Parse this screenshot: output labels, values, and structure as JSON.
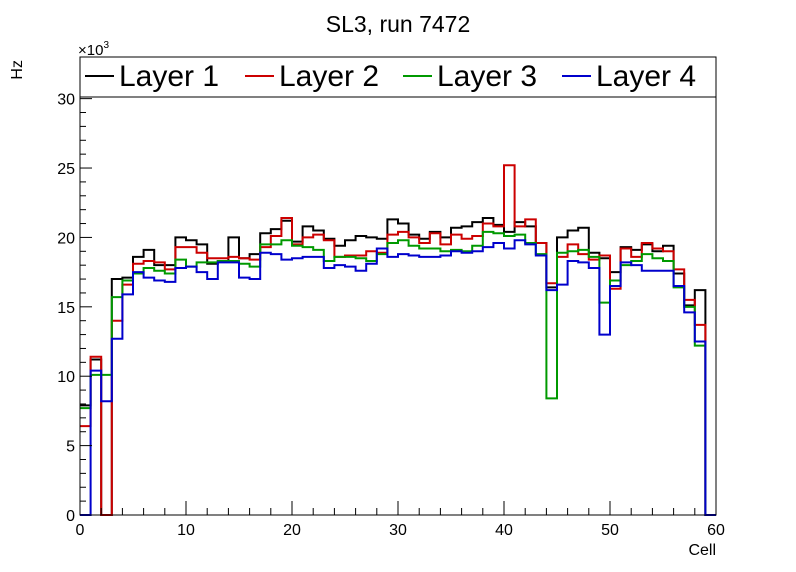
{
  "chart_data": {
    "type": "line",
    "style": "step-histogram",
    "title": "SL3, run 7472",
    "xlabel": "Cell",
    "ylabel": "Hz",
    "y_exponent_label": "×10",
    "y_exponent_power": "3",
    "xlim": [
      0,
      60
    ],
    "ylim": [
      0,
      33
    ],
    "x_ticks": [
      0,
      10,
      20,
      30,
      40,
      50,
      60
    ],
    "y_ticks": [
      0,
      5,
      10,
      15,
      20,
      25,
      30
    ],
    "grid": false,
    "legend": "top",
    "bin_edges_start": 0,
    "bin_width": 1,
    "series": [
      {
        "name": "Layer 1",
        "color": "#000000",
        "values": [
          7.9,
          11.2,
          0,
          17.0,
          17.1,
          18.6,
          19.1,
          18.0,
          18.0,
          20.0,
          19.8,
          19.5,
          18.1,
          18.3,
          20.0,
          18.5,
          18.8,
          20.3,
          20.6,
          21.2,
          19.7,
          20.8,
          20.5,
          19.9,
          19.4,
          19.8,
          20.1,
          20.0,
          19.9,
          21.3,
          21.0,
          20.2,
          19.9,
          20.4,
          20.0,
          20.7,
          20.8,
          21.1,
          21.4,
          20.9,
          20.4,
          21.1,
          20.8,
          19.6,
          16.4,
          20.0,
          20.5,
          20.7,
          18.9,
          18.5,
          17.5,
          19.3,
          19.1,
          19.5,
          19.0,
          19.4,
          17.4,
          15.1,
          16.2,
          0
        ]
      },
      {
        "name": "Layer 2",
        "color": "#cc0000",
        "values": [
          6.4,
          11.4,
          0,
          14.0,
          16.6,
          18.1,
          18.3,
          18.2,
          17.7,
          19.3,
          19.3,
          18.9,
          18.5,
          18.5,
          18.6,
          18.5,
          18.4,
          19.3,
          20.1,
          21.4,
          19.5,
          20.0,
          20.2,
          19.8,
          18.6,
          18.7,
          18.7,
          19.0,
          18.9,
          20.2,
          20.4,
          20.0,
          19.6,
          20.3,
          19.5,
          20.2,
          19.9,
          20.1,
          21.0,
          20.8,
          25.2,
          20.8,
          21.3,
          19.6,
          16.7,
          18.6,
          19.5,
          18.8,
          18.4,
          18.7,
          16.3,
          19.2,
          18.6,
          19.6,
          19.2,
          19.0,
          17.7,
          15.5,
          13.7,
          0
        ]
      },
      {
        "name": "Layer 3",
        "color": "#009900",
        "values": [
          7.7,
          10.1,
          10.1,
          15.7,
          16.9,
          17.4,
          17.8,
          17.6,
          17.4,
          18.4,
          17.9,
          18.2,
          18.2,
          18.3,
          18.3,
          18.1,
          17.9,
          19.5,
          19.5,
          19.8,
          19.4,
          19.3,
          19.1,
          18.3,
          18.6,
          18.6,
          18.5,
          18.3,
          18.8,
          19.6,
          19.8,
          19.4,
          19.2,
          19.2,
          19.0,
          19.1,
          19.0,
          19.4,
          20.4,
          20.3,
          20.1,
          20.2,
          19.6,
          18.8,
          8.4,
          18.9,
          19.0,
          19.1,
          18.6,
          15.3,
          16.9,
          18.0,
          18.3,
          18.8,
          18.5,
          18.3,
          16.4,
          15.0,
          12.2,
          0
        ]
      },
      {
        "name": "Layer 4",
        "color": "#0000cc",
        "values": [
          0,
          10.4,
          8.2,
          12.7,
          15.9,
          17.5,
          17.1,
          16.9,
          16.8,
          17.8,
          17.9,
          17.5,
          17.0,
          18.2,
          18.2,
          17.1,
          17.0,
          18.9,
          18.8,
          18.4,
          18.5,
          18.6,
          18.6,
          17.8,
          18.0,
          17.9,
          17.6,
          18.1,
          19.2,
          18.6,
          18.8,
          18.7,
          18.6,
          18.6,
          18.7,
          19.0,
          18.9,
          19.0,
          19.3,
          19.6,
          19.2,
          19.8,
          19.5,
          18.7,
          16.2,
          16.6,
          18.3,
          18.2,
          17.8,
          13.0,
          16.5,
          18.2,
          18.0,
          17.6,
          17.6,
          17.6,
          16.5,
          14.6,
          12.5,
          0
        ]
      }
    ]
  }
}
